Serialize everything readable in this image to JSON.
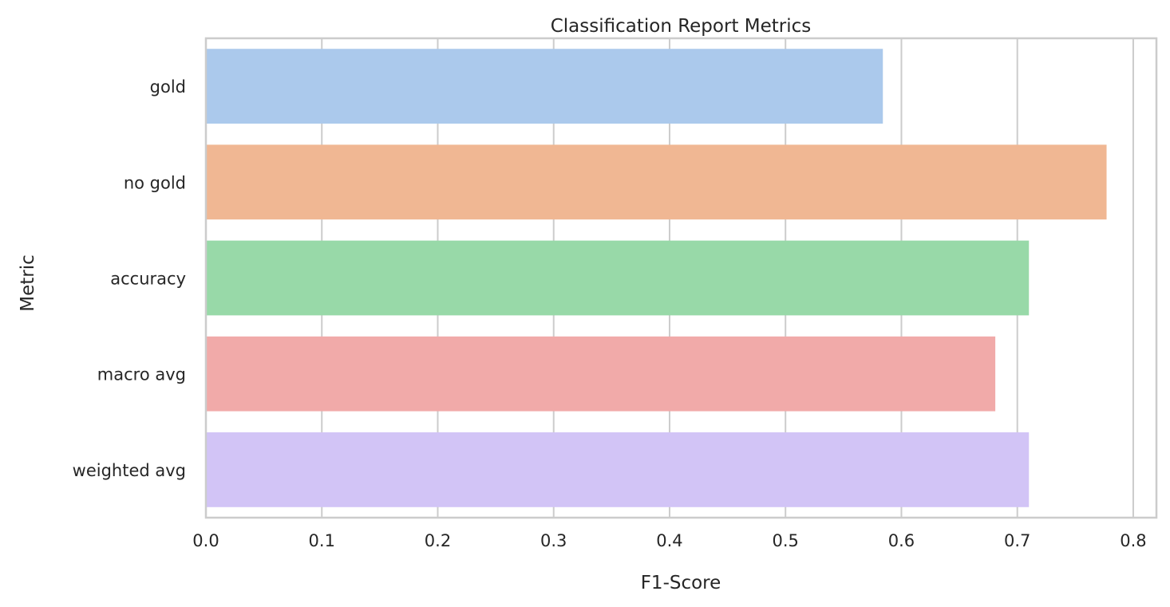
{
  "chart_data": {
    "type": "bar",
    "orientation": "horizontal",
    "title": "Classification Report Metrics",
    "xlabel": "F1-Score",
    "ylabel": "Metric",
    "categories": [
      "gold",
      "no gold",
      "accuracy",
      "macro avg",
      "weighted avg"
    ],
    "values": [
      0.584,
      0.777,
      0.71,
      0.681,
      0.71
    ],
    "colors": [
      "#abc9ec",
      "#f0b793",
      "#98d9a8",
      "#f1aaa9",
      "#d2c4f6"
    ],
    "xlim": [
      0,
      0.82
    ],
    "xticks": [
      0.0,
      0.1,
      0.2,
      0.3,
      0.4,
      0.5,
      0.6,
      0.7,
      0.8
    ],
    "xtick_labels": [
      "0.0",
      "0.1",
      "0.2",
      "0.3",
      "0.4",
      "0.5",
      "0.6",
      "0.7",
      "0.8"
    ],
    "grid": true,
    "legend": "none"
  }
}
